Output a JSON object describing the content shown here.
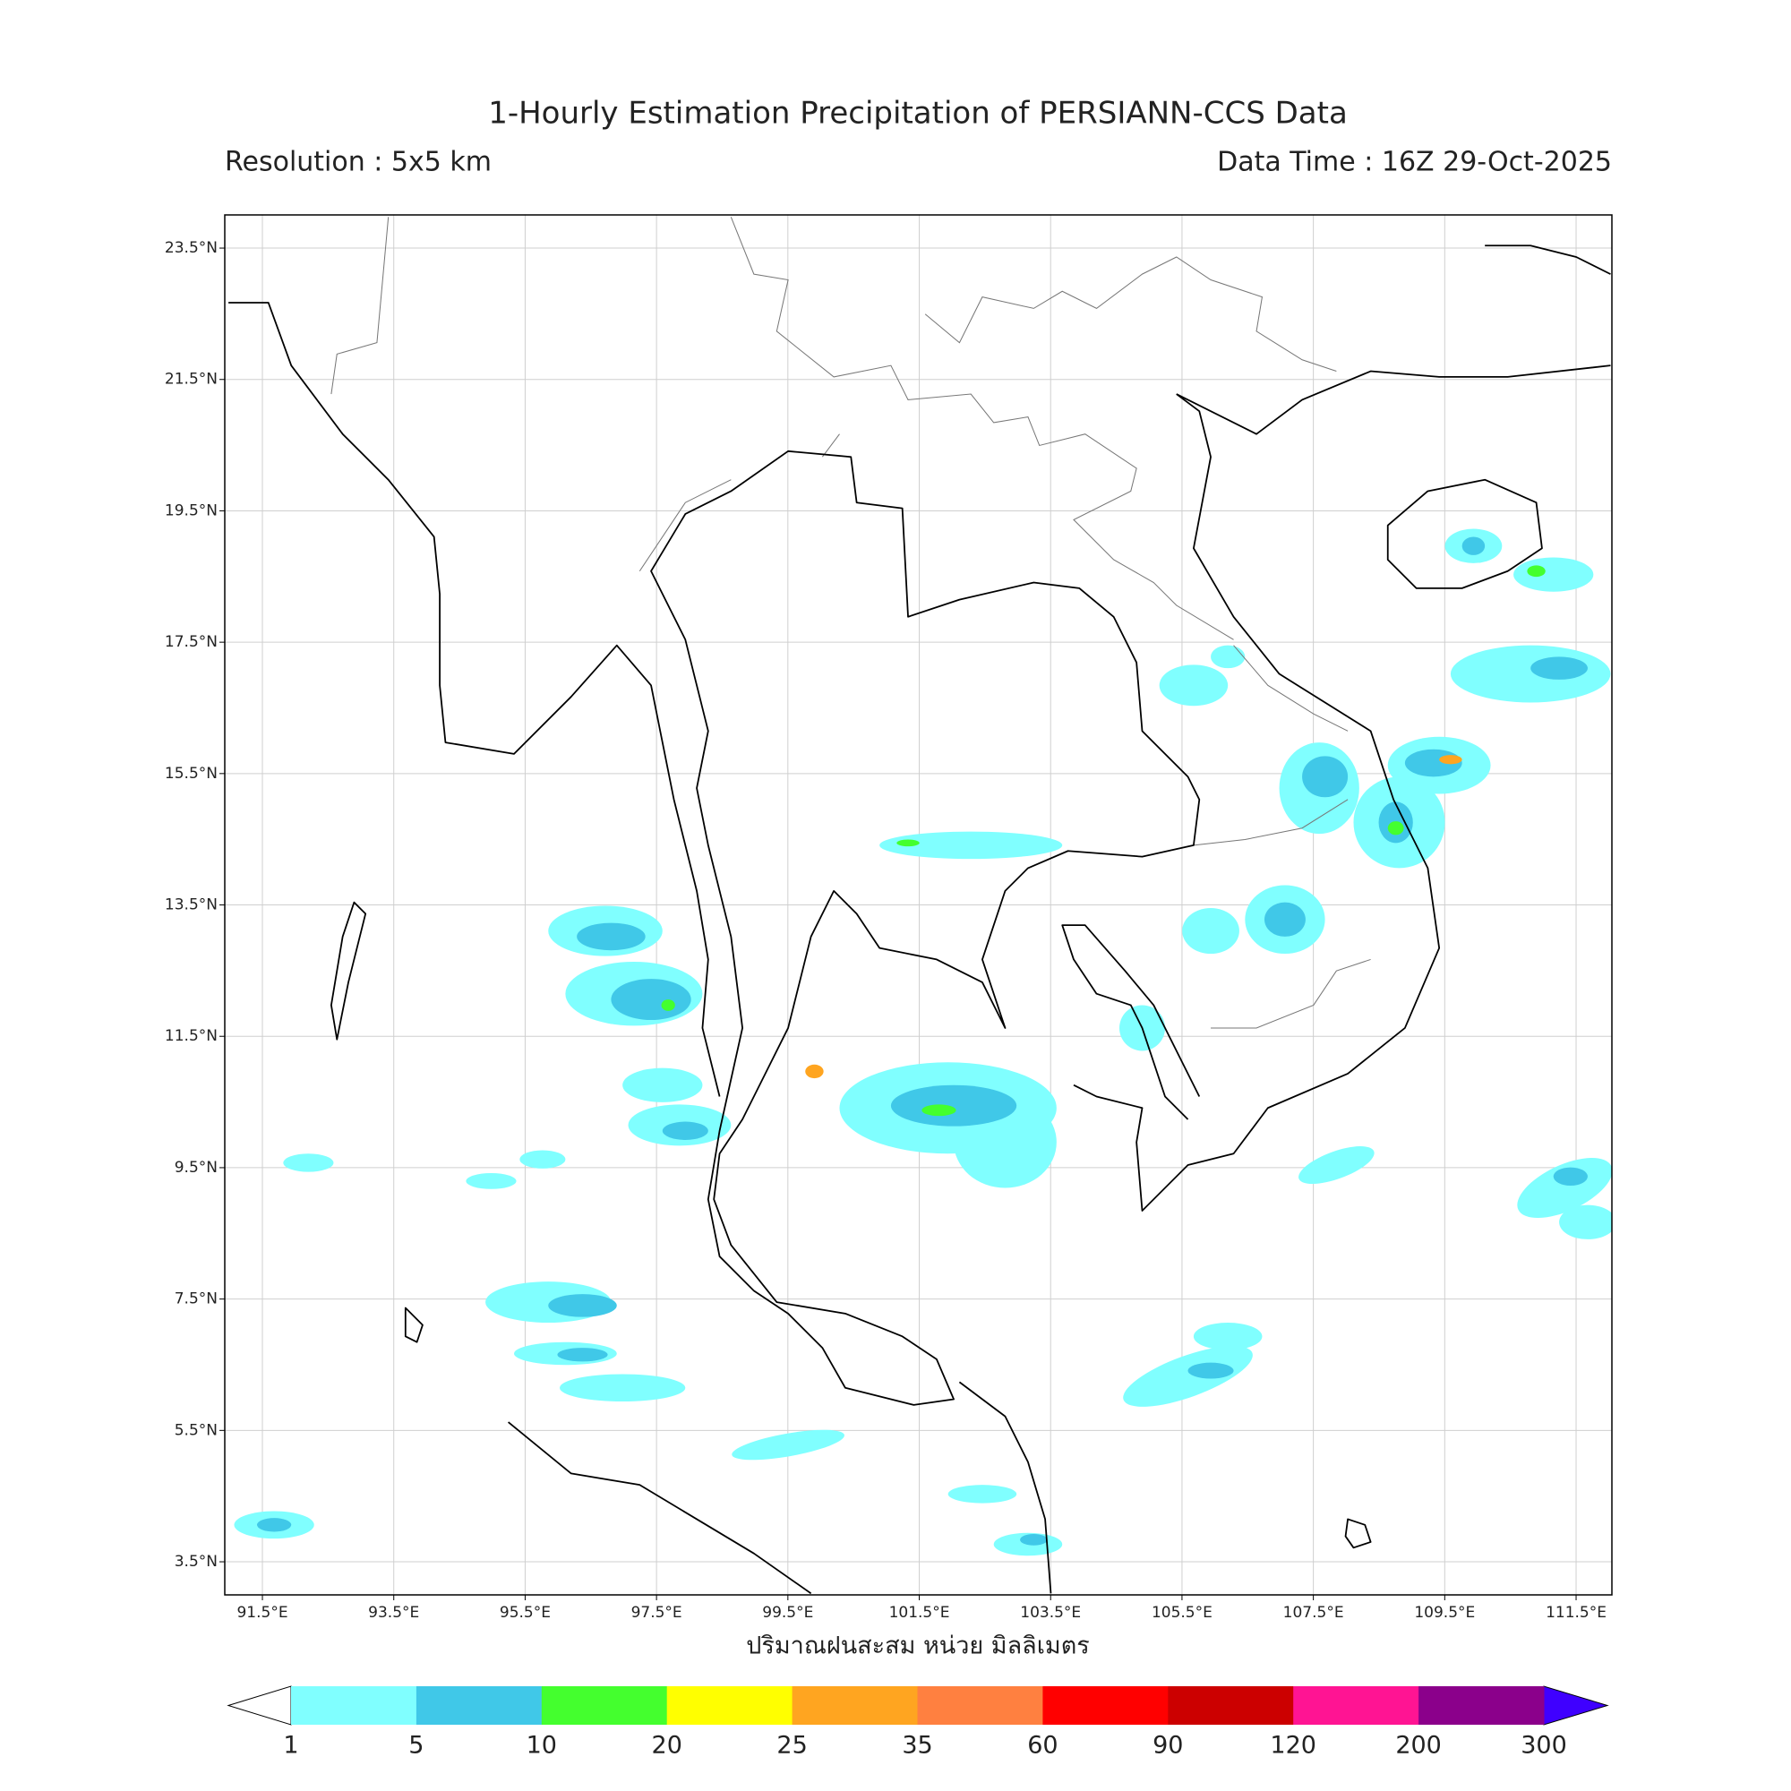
{
  "title": "1-Hourly Estimation Precipitation of PERSIANN-CCS Data",
  "resolution": "Resolution : 5x5 km",
  "data_time": "Data Time : 16Z 29-Oct-2025",
  "map": {
    "lon_ticks": [
      {
        "value": 91.5,
        "label": "91.5°E"
      },
      {
        "value": 93.5,
        "label": "93.5°E"
      },
      {
        "value": 95.5,
        "label": "95.5°E"
      },
      {
        "value": 97.5,
        "label": "97.5°E"
      },
      {
        "value": 99.5,
        "label": "99.5°E"
      },
      {
        "value": 101.5,
        "label": "101.5°E"
      },
      {
        "value": 103.5,
        "label": "103.5°E"
      },
      {
        "value": 105.5,
        "label": "105.5°E"
      },
      {
        "value": 107.5,
        "label": "107.5°E"
      },
      {
        "value": 109.5,
        "label": "109.5°E"
      },
      {
        "value": 111.5,
        "label": "111.5°E"
      }
    ],
    "lat_ticks": [
      {
        "value": 23.5,
        "label": "23.5°N"
      },
      {
        "value": 21.5,
        "label": "21.5°N"
      },
      {
        "value": 19.5,
        "label": "19.5°N"
      },
      {
        "value": 17.5,
        "label": "17.5°N"
      },
      {
        "value": 15.5,
        "label": "15.5°N"
      },
      {
        "value": 13.5,
        "label": "13.5°N"
      },
      {
        "value": 11.5,
        "label": "11.5°N"
      },
      {
        "value": 9.5,
        "label": "9.5°N"
      },
      {
        "value": 7.5,
        "label": "7.5°N"
      },
      {
        "value": 5.5,
        "label": "5.5°N"
      },
      {
        "value": 3.5,
        "label": "3.5°N"
      }
    ],
    "x_label": "ปริมาณฝนสะสม หน่วย มิลลิเมตร"
  },
  "colorbar": {
    "boundaries": [
      1,
      5,
      10,
      20,
      25,
      35,
      60,
      90,
      120,
      200,
      300
    ],
    "colors": [
      "#80ffff",
      "#40c8e8",
      "#44ff2e",
      "#ffff00",
      "#ffa520",
      "#ff8040",
      "#ff0000",
      "#cc0000",
      "#ff1493",
      "#8b008b"
    ],
    "under_color": "#ffffff",
    "over_color": "#3f00ff"
  }
}
